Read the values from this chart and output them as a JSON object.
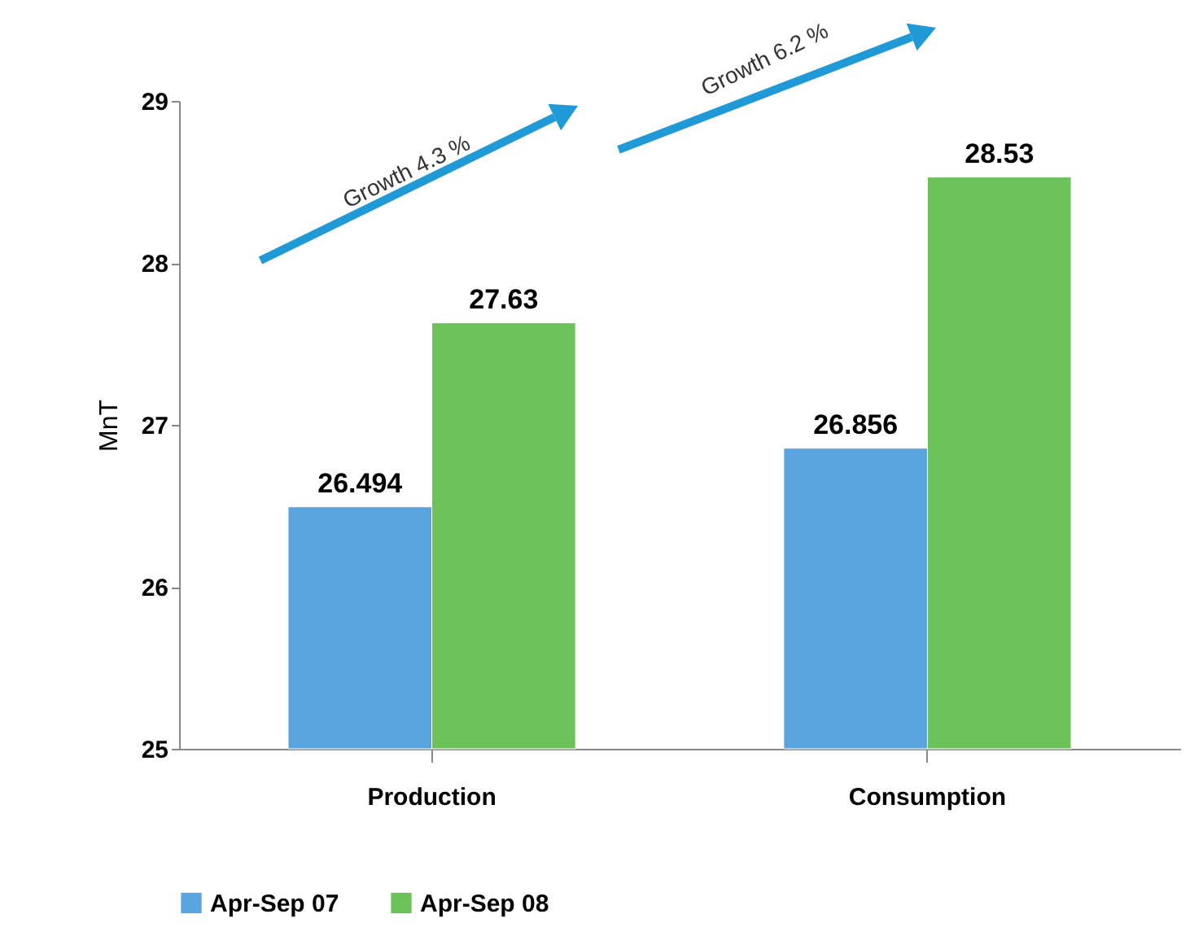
{
  "chart_data": {
    "type": "bar",
    "ylabel": "MnT",
    "categories": [
      "Production",
      "Consumption"
    ],
    "series": [
      {
        "name": "Apr-Sep 07",
        "color": "#5aa5e0",
        "values": [
          26.494,
          26.856
        ]
      },
      {
        "name": "Apr-Sep 08",
        "color": "#6cc35a",
        "values": [
          27.63,
          28.53
        ]
      }
    ],
    "ylim": [
      25,
      29
    ],
    "yticks": [
      25,
      26,
      27,
      28,
      29
    ],
    "grid": false,
    "legend": "bottom",
    "data_labels": true,
    "annotations": [
      "Growth 4.3 %",
      "Growth 6.2 %"
    ]
  }
}
